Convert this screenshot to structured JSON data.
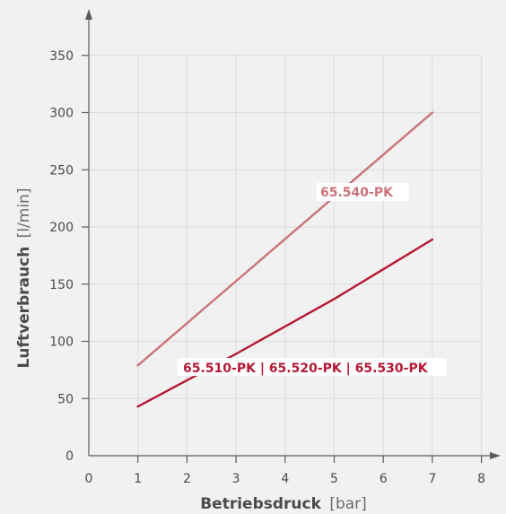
{
  "chart_data": {
    "type": "line",
    "xlabel": "Betriebsdruck",
    "xlabel_unit": "[bar]",
    "ylabel": "Luftverbrauch",
    "ylabel_unit": "[l/min]",
    "xlim": [
      0,
      8
    ],
    "ylim": [
      0,
      350
    ],
    "x_ticks": [
      "0",
      "1",
      "2",
      "3",
      "4",
      "5",
      "6",
      "7",
      "8"
    ],
    "y_ticks": [
      "0",
      "50",
      "100",
      "150",
      "200",
      "250",
      "300",
      "350"
    ],
    "grid": true,
    "series": [
      {
        "name": "65.540-PK",
        "color": "#c97479",
        "x": [
          1,
          7
        ],
        "y": [
          79,
          300
        ]
      },
      {
        "name": "65.510-PK | 65.520-PK | 65.530-PK",
        "color": "#b51934",
        "x": [
          1,
          2,
          3,
          4,
          5,
          6,
          7
        ],
        "y": [
          43,
          66,
          89,
          113,
          137,
          163,
          189
        ]
      }
    ]
  }
}
